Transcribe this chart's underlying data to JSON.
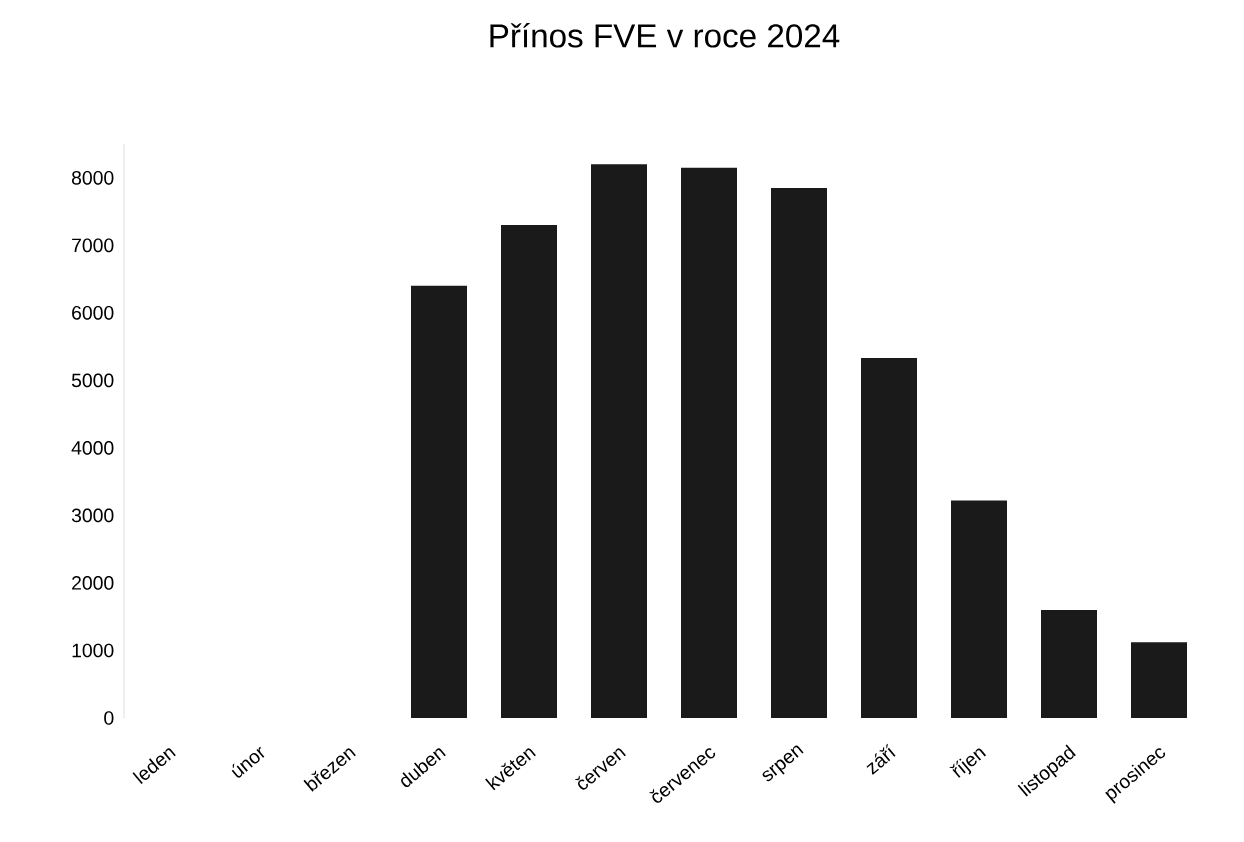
{
  "chart_data": {
    "type": "bar",
    "title": "Přínos FVE v roce 2024",
    "categories": [
      "leden",
      "únor",
      "březen",
      "duben",
      "květen",
      "červen",
      "červenec",
      "srpen",
      "září",
      "říjen",
      "listopad",
      "prosinec"
    ],
    "values": [
      0,
      0,
      0,
      6400,
      7300,
      8200,
      8150,
      7850,
      5330,
      3220,
      1600,
      1120
    ],
    "color": "#1a1a1a",
    "ylim": [
      0,
      8500
    ],
    "yticks": [
      0,
      1000,
      2000,
      3000,
      4000,
      5000,
      6000,
      7000,
      8000
    ],
    "grid": false
  }
}
